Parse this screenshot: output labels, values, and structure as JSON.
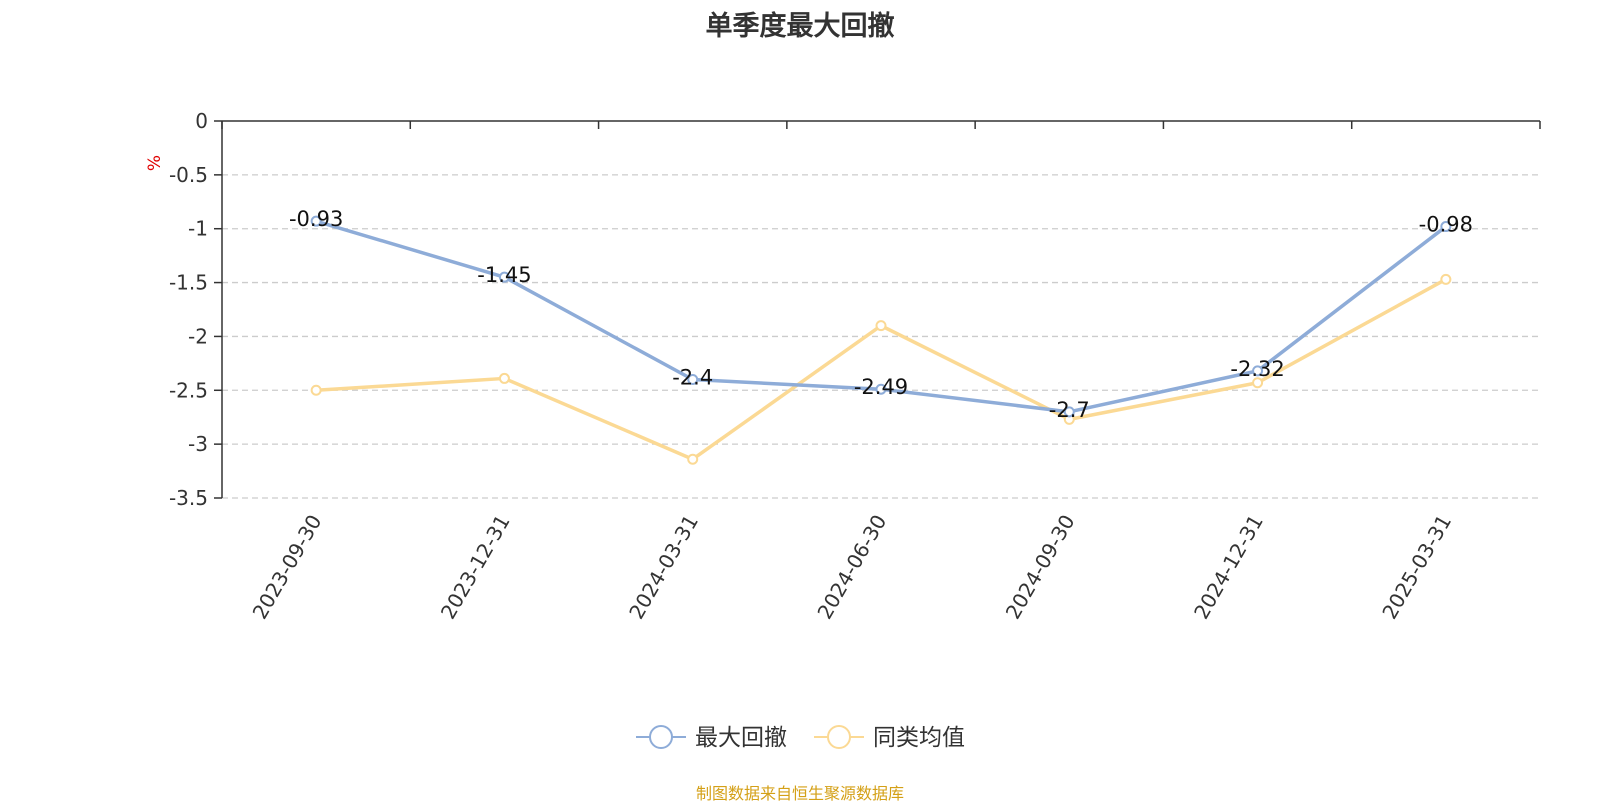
{
  "title": "单季度最大回撤",
  "source": "制图数据来自恒生聚源数据库",
  "chart_data": {
    "type": "line",
    "title": "单季度最大回撤",
    "ylabel": "%",
    "xlabel": "",
    "categories": [
      "2023-09-30",
      "2023-12-31",
      "2024-03-31",
      "2024-06-30",
      "2024-09-30",
      "2024-12-31",
      "2025-03-31"
    ],
    "ylim": [
      -3.5,
      0
    ],
    "yticks": [
      0,
      -0.5,
      -1,
      -1.5,
      -2,
      -2.5,
      -3,
      -3.5
    ],
    "ytick_labels": [
      "0",
      "-0.5",
      "-1",
      "-1.5",
      "-2",
      "-2.5",
      "-3",
      "-3.5"
    ],
    "grid": true,
    "legend_position": "bottom",
    "series": [
      {
        "name": "最大回撤",
        "color": "#8eacd8",
        "values": [
          -0.93,
          -1.45,
          -2.4,
          -2.49,
          -2.7,
          -2.32,
          -0.98
        ],
        "labels": [
          "-0.93",
          "-1.45",
          "-2.4",
          "-2.49",
          "-2.7",
          "-2.32",
          "-0.98"
        ]
      },
      {
        "name": "同类均值",
        "color": "#fbd994",
        "values": [
          -2.5,
          -2.39,
          -3.14,
          -1.9,
          -2.77,
          -2.43,
          -1.47
        ]
      }
    ]
  }
}
